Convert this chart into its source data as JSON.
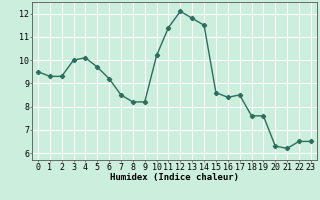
{
  "x": [
    0,
    1,
    2,
    3,
    4,
    5,
    6,
    7,
    8,
    9,
    10,
    11,
    12,
    13,
    14,
    15,
    16,
    17,
    18,
    19,
    20,
    21,
    22,
    23
  ],
  "y": [
    9.5,
    9.3,
    9.3,
    10.0,
    10.1,
    9.7,
    9.2,
    8.5,
    8.2,
    8.2,
    10.2,
    11.4,
    12.1,
    11.8,
    11.5,
    8.6,
    8.4,
    8.5,
    7.6,
    7.6,
    6.3,
    6.2,
    6.5,
    6.5
  ],
  "xlabel": "Humidex (Indice chaleur)",
  "line_color": "#2d6e5e",
  "marker": "D",
  "marker_size": 2.2,
  "linewidth": 1.0,
  "bg_color": "#cceedd",
  "grid_color": "#ffffff",
  "ylim": [
    5.7,
    12.5
  ],
  "xlim": [
    -0.5,
    23.5
  ],
  "yticks": [
    6,
    7,
    8,
    9,
    10,
    11,
    12
  ],
  "xticks": [
    0,
    1,
    2,
    3,
    4,
    5,
    6,
    7,
    8,
    9,
    10,
    11,
    12,
    13,
    14,
    15,
    16,
    17,
    18,
    19,
    20,
    21,
    22,
    23
  ],
  "xlabel_fontsize": 6.5,
  "tick_fontsize": 6.0
}
